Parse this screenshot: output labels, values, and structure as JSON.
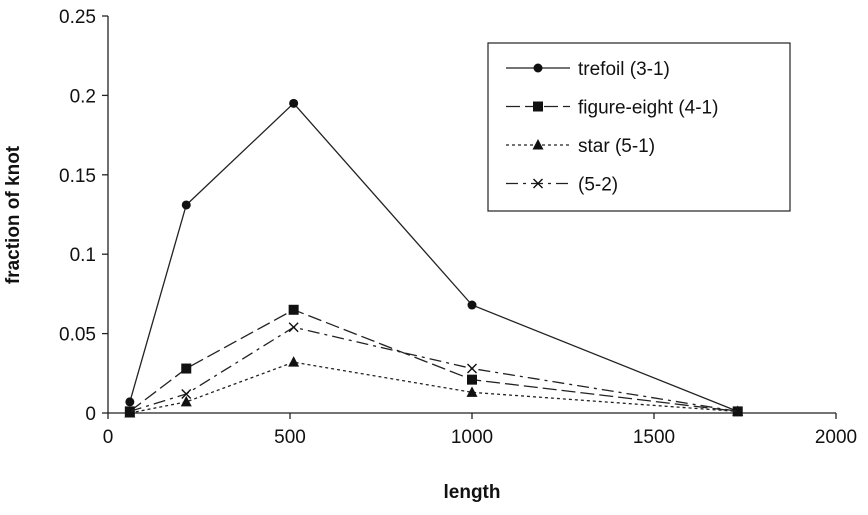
{
  "chart_data": {
    "type": "line",
    "title": "",
    "xlabel": "length",
    "ylabel": "fraction of knot",
    "xlim": [
      0,
      2000
    ],
    "ylim": [
      0,
      0.25
    ],
    "x_ticks": [
      "0",
      "500",
      "1000",
      "1500",
      "2000"
    ],
    "y_ticks": [
      "0",
      "0.05",
      "0.1",
      "0.15",
      "0.2",
      "0.25"
    ],
    "grid": false,
    "legend_position": "top-right",
    "x": [
      60,
      215,
      510,
      1000,
      1730
    ],
    "series": [
      {
        "name": "trefoil (3-1)",
        "marker": "circle",
        "dash": "solid",
        "values": [
          0.007,
          0.131,
          0.195,
          0.068,
          0.001
        ]
      },
      {
        "name": "figure-eight (4-1)",
        "marker": "square",
        "dash": "long-dash",
        "values": [
          0.001,
          0.028,
          0.065,
          0.021,
          0.001
        ]
      },
      {
        "name": "star (5-1)",
        "marker": "triangle",
        "dash": "dotted",
        "values": [
          0.0,
          0.007,
          0.032,
          0.013,
          0.001
        ]
      },
      {
        "name": "(5-2)",
        "marker": "x",
        "dash": "dash-dot",
        "values": [
          0.001,
          0.012,
          0.054,
          0.028,
          0.001
        ]
      }
    ]
  }
}
